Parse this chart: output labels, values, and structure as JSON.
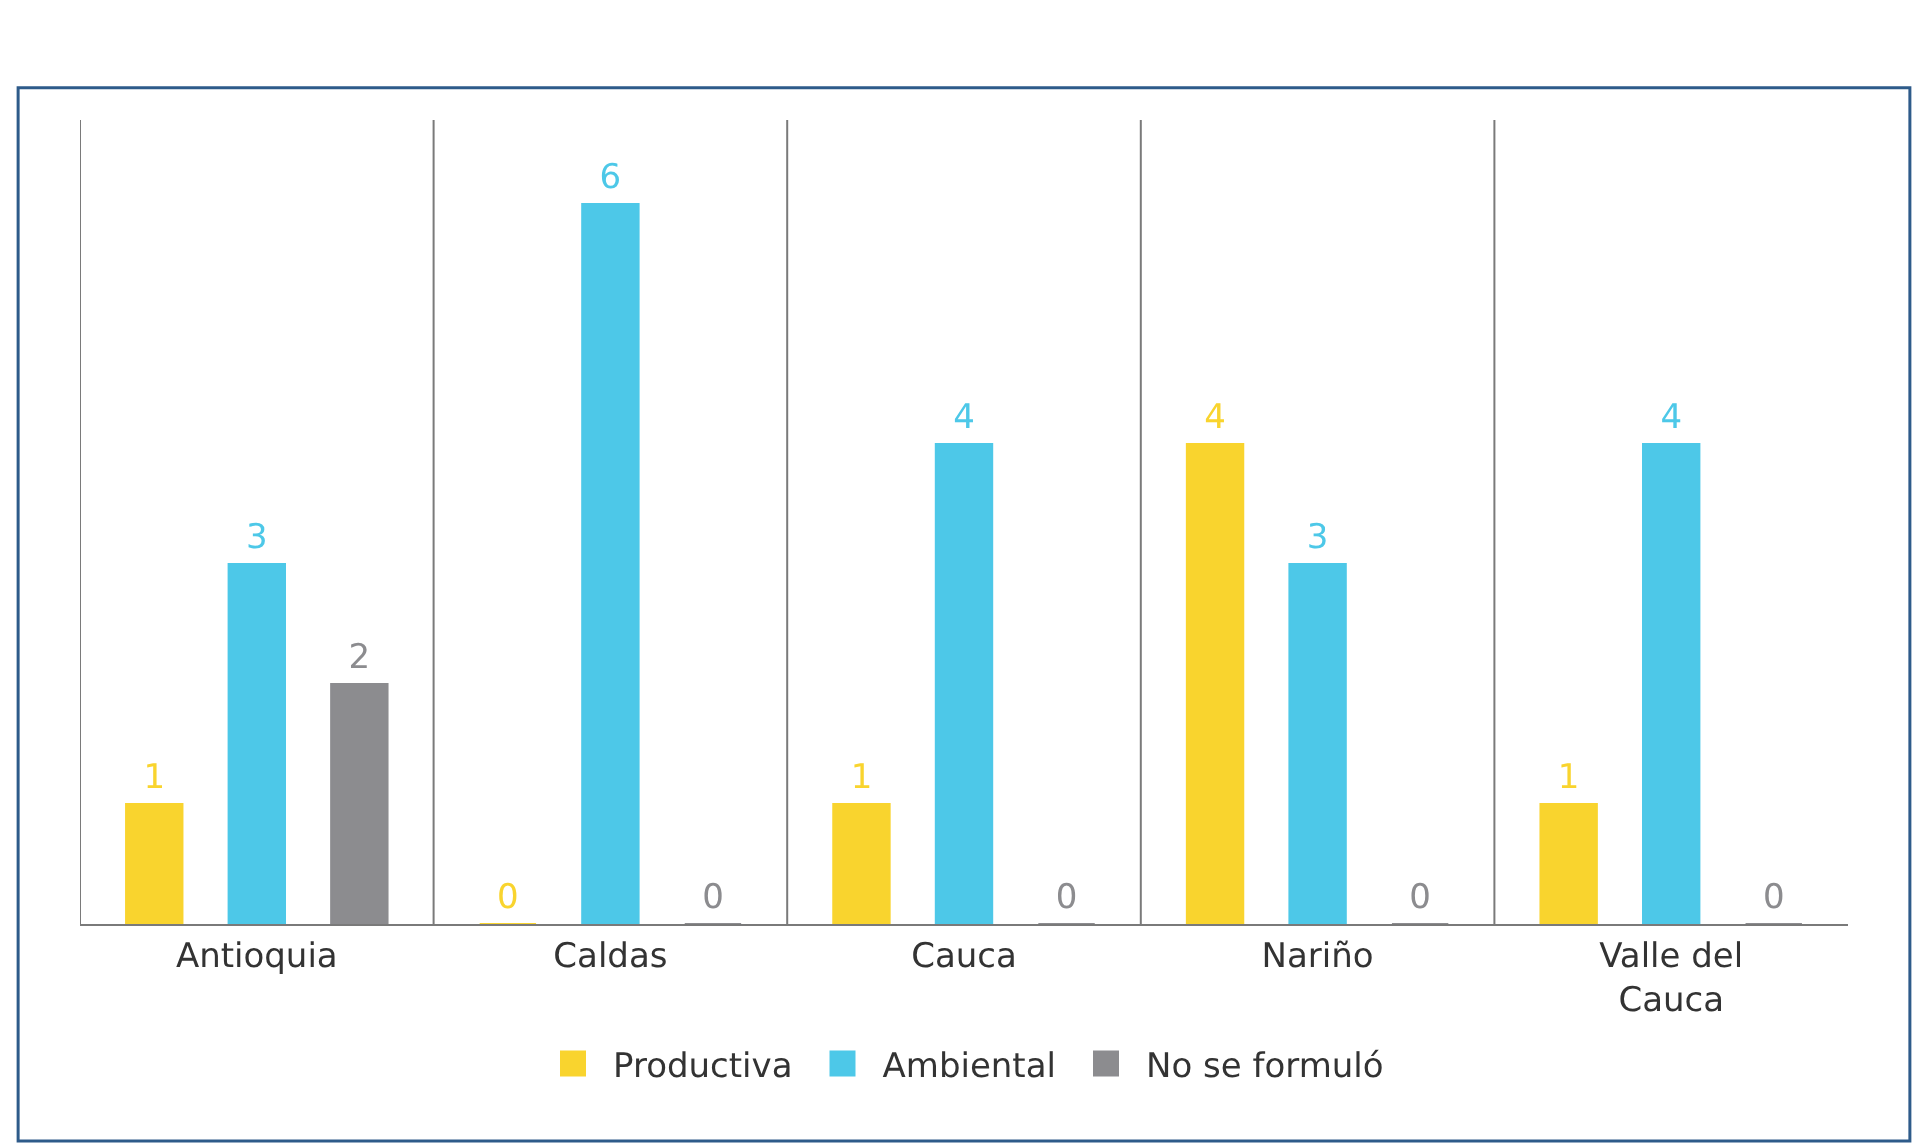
{
  "chart_data": {
    "type": "bar",
    "categories": [
      "Antioquia",
      "Caldas",
      "Cauca",
      "Nariño",
      "Valle del Cauca"
    ],
    "series": [
      {
        "name": "Productiva",
        "color": "#f9d42e",
        "values": [
          1,
          0,
          1,
          4,
          1
        ]
      },
      {
        "name": "Ambiental",
        "color": "#4dc8e8",
        "values": [
          3,
          6,
          4,
          3,
          4
        ]
      },
      {
        "name": "No se formuló",
        "color": "#8c8c8f",
        "values": [
          2,
          0,
          0,
          0,
          0
        ]
      }
    ],
    "ylim": [
      0,
      6.7
    ],
    "data_labels": true,
    "grid": "x",
    "legend": "bottom",
    "tick_labels": "x"
  }
}
